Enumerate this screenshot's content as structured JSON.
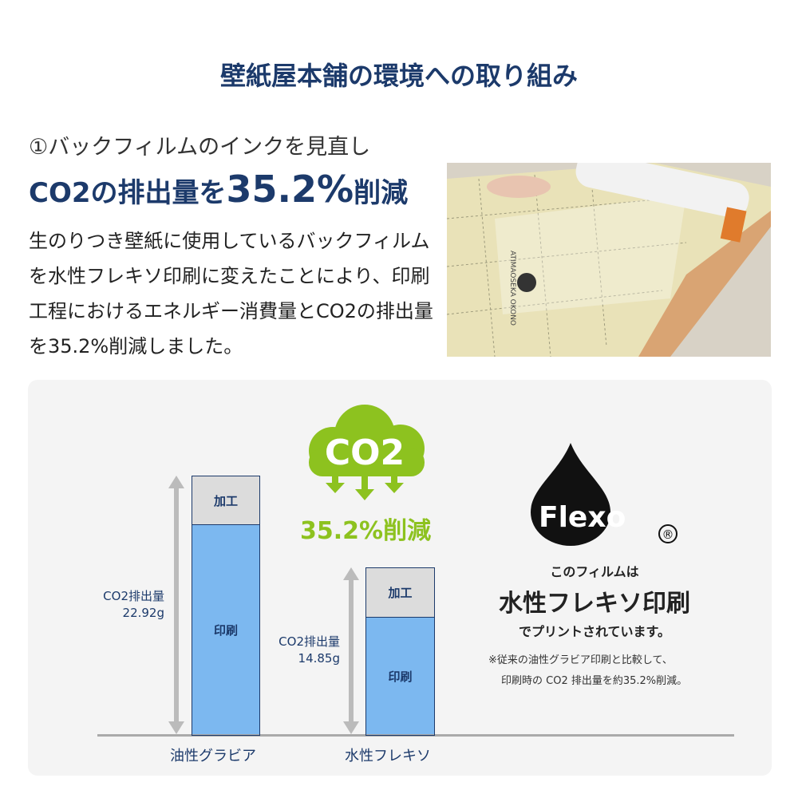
{
  "title": "壁紙屋本舗の環境への取り組み",
  "subtitle": "①バックフィルムのインクを見直し",
  "headline": {
    "prefix": "CO2の排出量を",
    "value": "35.2%",
    "suffix": "削減"
  },
  "body": "生のりつき壁紙に使用しているバックフィルムを水性フレキソ印刷に変えたことにより、印刷工程におけるエネルギー消費量とCO2の排出量を35.2%削減しました。",
  "photo": {
    "print_text": "ATIMAOSEKA OKONO"
  },
  "cloud": {
    "label": "CO2",
    "reduction": "35.2%削減",
    "color": "#8dc21f"
  },
  "bars": [
    {
      "category": "油性グラビア",
      "total_label": "CO2排出量",
      "total": "22.92g",
      "total_value": 22.92,
      "segments": [
        "加工",
        "印刷"
      ]
    },
    {
      "category": "水性フレキソ",
      "total_label": "CO2排出量",
      "total": "14.85g",
      "total_value": 14.85,
      "segments": [
        "加工",
        "印刷"
      ]
    }
  ],
  "flexo": {
    "logo": "Flexo",
    "registered": "®",
    "line1": "このフィルムは",
    "line2": "水性フレキソ印刷",
    "line3": "でプリントされています。",
    "note1": "※従来の油性グラビア印刷と比較して、",
    "note2": "印刷時の CO2 排出量を約35.2%削減。"
  },
  "colors": {
    "navy": "#1c3a6b",
    "bar_blue": "#7cb8f0",
    "green": "#8dc21f"
  }
}
